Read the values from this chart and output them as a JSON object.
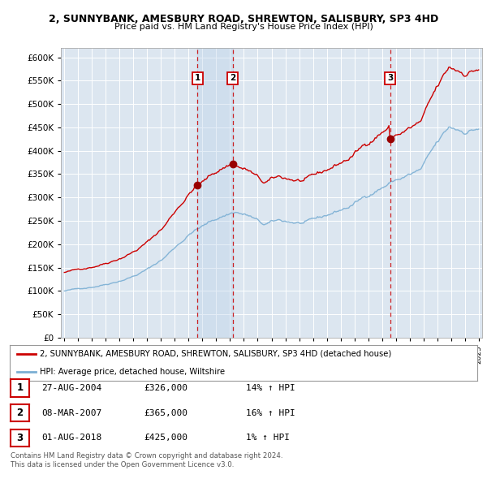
{
  "title": "2, SUNNYBANK, AMESBURY ROAD, SHREWTON, SALISBURY, SP3 4HD",
  "subtitle": "Price paid vs. HM Land Registry's House Price Index (HPI)",
  "background_color": "#ffffff",
  "plot_bg_color": "#dce6f0",
  "grid_color": "#ffffff",
  "shade_color": "#c8d8ea",
  "line1_color": "#cc0000",
  "line2_color": "#7bafd4",
  "marker_color": "#990000",
  "transactions": [
    {
      "num": 1,
      "date_label": "27-AUG-2004",
      "price": 326000,
      "hpi_diff": "14% ↑ HPI",
      "x": 2004.65
    },
    {
      "num": 2,
      "date_label": "08-MAR-2007",
      "price": 365000,
      "hpi_diff": "16% ↑ HPI",
      "x": 2007.18
    },
    {
      "num": 3,
      "date_label": "01-AUG-2018",
      "price": 425000,
      "hpi_diff": "1% ↑ HPI",
      "x": 2018.58
    }
  ],
  "legend_label1": "2, SUNNYBANK, AMESBURY ROAD, SHREWTON, SALISBURY, SP3 4HD (detached house)",
  "legend_label2": "HPI: Average price, detached house, Wiltshire",
  "footer1": "Contains HM Land Registry data © Crown copyright and database right 2024.",
  "footer2": "This data is licensed under the Open Government Licence v3.0.",
  "ylim": [
    0,
    620000
  ],
  "xlim": [
    1994.75,
    2025.25
  ]
}
